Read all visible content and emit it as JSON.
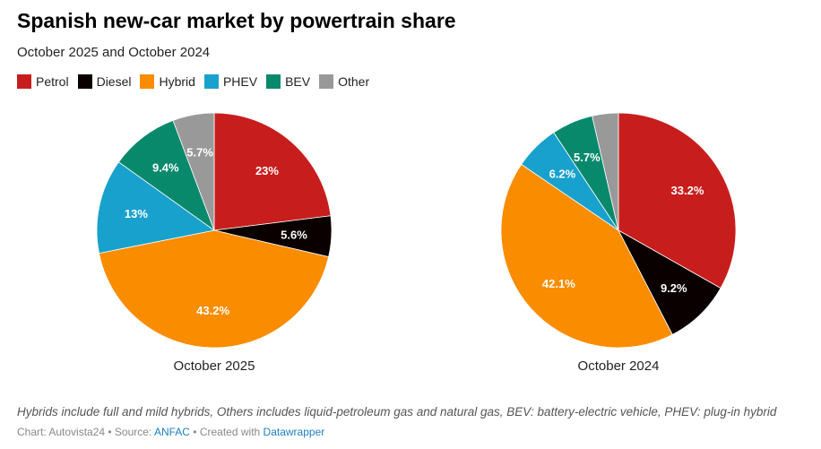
{
  "title": "Spanish new-car market by powertrain share",
  "subtitle": "October 2025 and October 2024",
  "note": "Hybrids include full and mild hybrids, Others includes liquid-petroleum gas and natural gas, BEV: battery-electric vehicle, PHEV: plug-in hybrid",
  "credit": {
    "chart": "Chart: Autovista24 • Source: ",
    "source": "ANFAC",
    "created": " • Created with ",
    "tool": "Datawrapper"
  },
  "chart_data": {
    "type": "pie",
    "title": "Spanish new-car market by powertrain share",
    "legend": [
      {
        "name": "Petrol",
        "color": "#c71e1d"
      },
      {
        "name": "Diesel",
        "color": "#0a0000"
      },
      {
        "name": "Hybrid",
        "color": "#fa8c00"
      },
      {
        "name": "PHEV",
        "color": "#18a1cd"
      },
      {
        "name": "BEV",
        "color": "#09896c"
      },
      {
        "name": "Other",
        "color": "#999999"
      }
    ],
    "pies": [
      {
        "name": "October 2025",
        "values": [
          23,
          5.6,
          43.2,
          13,
          9.4,
          5.7
        ],
        "labels": [
          "23%",
          "5.6%",
          "43.2%",
          "13%",
          "9.4%",
          "5.7%"
        ]
      },
      {
        "name": "October 2024",
        "values": [
          33.2,
          9.2,
          42.1,
          6.2,
          5.7,
          3.6
        ],
        "labels": [
          "33.2%",
          "9.2%",
          "42.1%",
          "6.2%",
          "5.7%",
          null
        ]
      }
    ]
  }
}
